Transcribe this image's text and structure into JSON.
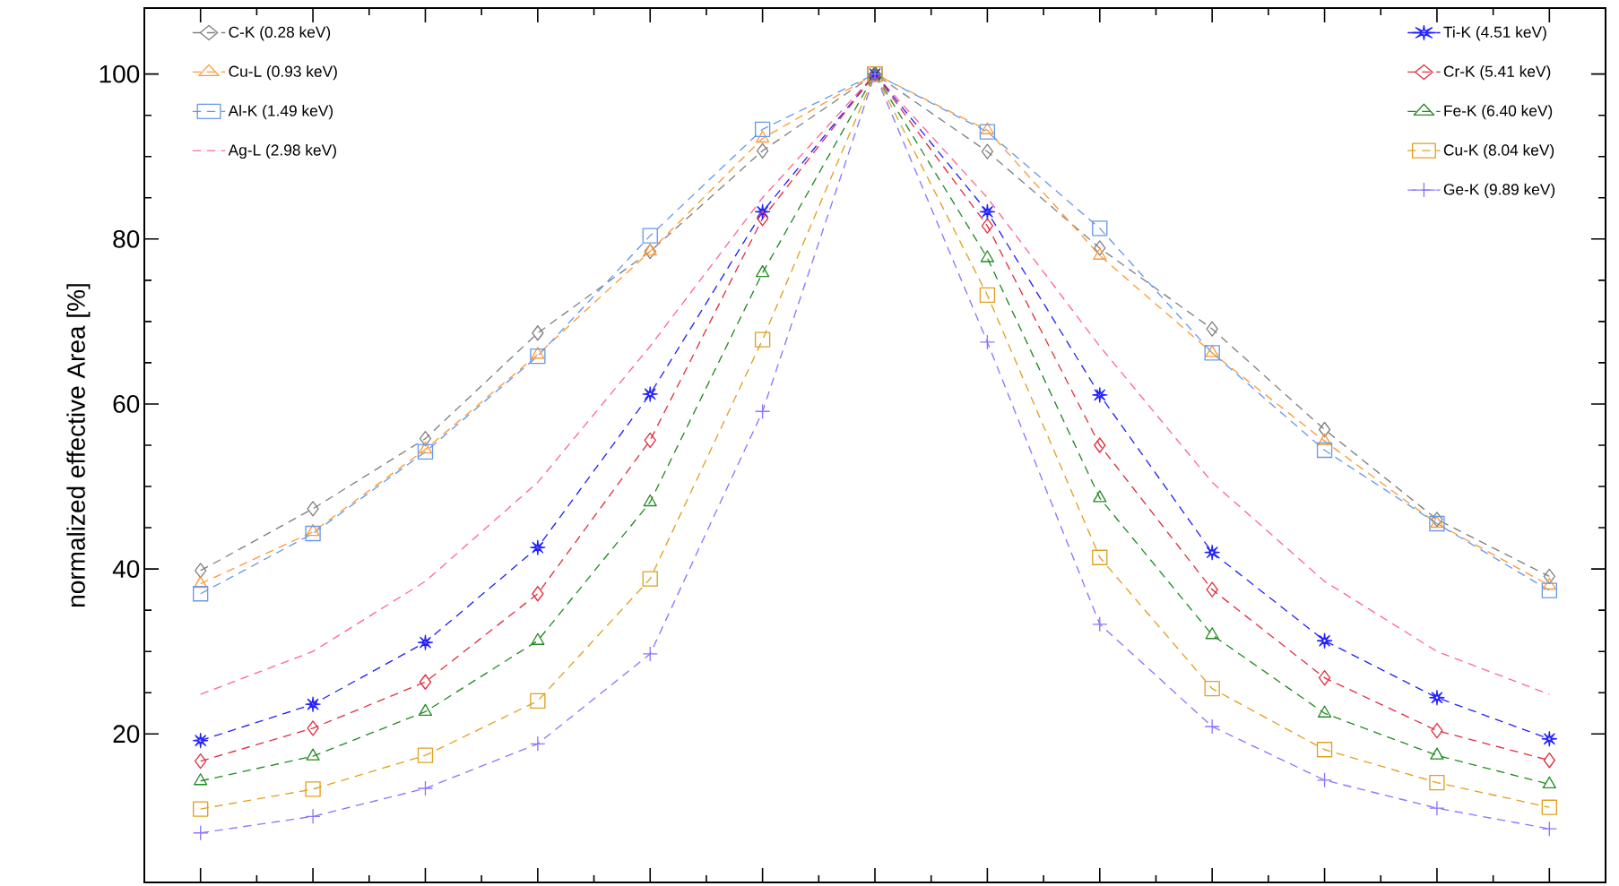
{
  "chart_data": {
    "type": "line",
    "ylabel": "normalized effective Area  [%]",
    "categories": [
      null,
      null,
      null,
      null,
      null,
      null,
      null,
      null,
      null,
      null,
      null,
      null,
      null
    ],
    "ylim": [
      2,
      108
    ],
    "yticks": [
      20,
      40,
      60,
      80,
      100
    ],
    "tick_labels": "y",
    "legend": "top",
    "line_style": "dashed",
    "grid": false,
    "series": [
      {
        "name": "C-K (0.28 keV)",
        "color": "#808080",
        "marker": "diamond",
        "values": [
          39.8,
          47.3,
          55.8,
          68.6,
          78.5,
          90.7,
          100,
          90.6,
          78.9,
          69.1,
          56.9,
          46.0,
          39.1
        ]
      },
      {
        "name": "Cu-L (0.93 keV)",
        "color": "#ff9933",
        "marker": "triangle",
        "values": [
          38.2,
          44.5,
          54.5,
          66.0,
          78.5,
          92.2,
          100,
          93.2,
          78.0,
          66.2,
          55.5,
          45.5,
          38.0
        ]
      },
      {
        "name": "Al-K (1.49 keV)",
        "color": "#6699ee",
        "marker": "square",
        "values": [
          37.0,
          44.3,
          54.2,
          65.8,
          80.4,
          93.3,
          100,
          93.0,
          81.3,
          66.2,
          54.4,
          45.5,
          37.4
        ]
      },
      {
        "name": "Ag-L (2.98 keV)",
        "color": "#ff6699",
        "marker": "none",
        "values": [
          24.8,
          30.0,
          38.5,
          50.5,
          67.0,
          85.0,
          100,
          85.0,
          67.0,
          50.5,
          38.5,
          30.0,
          24.8
        ]
      },
      {
        "name": "Ti-K (4.51 keV)",
        "color": "#2222ff",
        "marker": "star",
        "values": [
          19.2,
          23.6,
          31.1,
          42.6,
          61.2,
          83.3,
          100,
          83.3,
          61.1,
          42.0,
          31.3,
          24.4,
          19.4
        ]
      },
      {
        "name": "Cr-K (5.41 keV)",
        "color": "#e03040",
        "marker": "diamond",
        "values": [
          16.7,
          20.7,
          26.3,
          37.0,
          55.6,
          82.5,
          100,
          81.6,
          55.0,
          37.5,
          26.8,
          20.4,
          16.8
        ]
      },
      {
        "name": "Fe-K (6.40 keV)",
        "color": "#228b22",
        "marker": "triangle",
        "values": [
          14.3,
          17.3,
          22.7,
          31.3,
          48.1,
          75.9,
          100,
          77.7,
          48.6,
          32.0,
          22.5,
          17.4,
          13.9
        ]
      },
      {
        "name": "Cu-K (8.04 keV)",
        "color": "#e0a020",
        "marker": "square",
        "values": [
          10.9,
          13.3,
          17.4,
          24.0,
          38.8,
          67.8,
          100,
          73.2,
          41.4,
          25.5,
          18.1,
          14.1,
          11.1
        ]
      },
      {
        "name": "Ge-K (9.89 keV)",
        "color": "#8877ff",
        "marker": "cross",
        "values": [
          8.0,
          10.0,
          13.4,
          18.8,
          29.7,
          59.1,
          100,
          67.5,
          33.3,
          20.9,
          14.4,
          11.0,
          8.5
        ]
      }
    ]
  }
}
